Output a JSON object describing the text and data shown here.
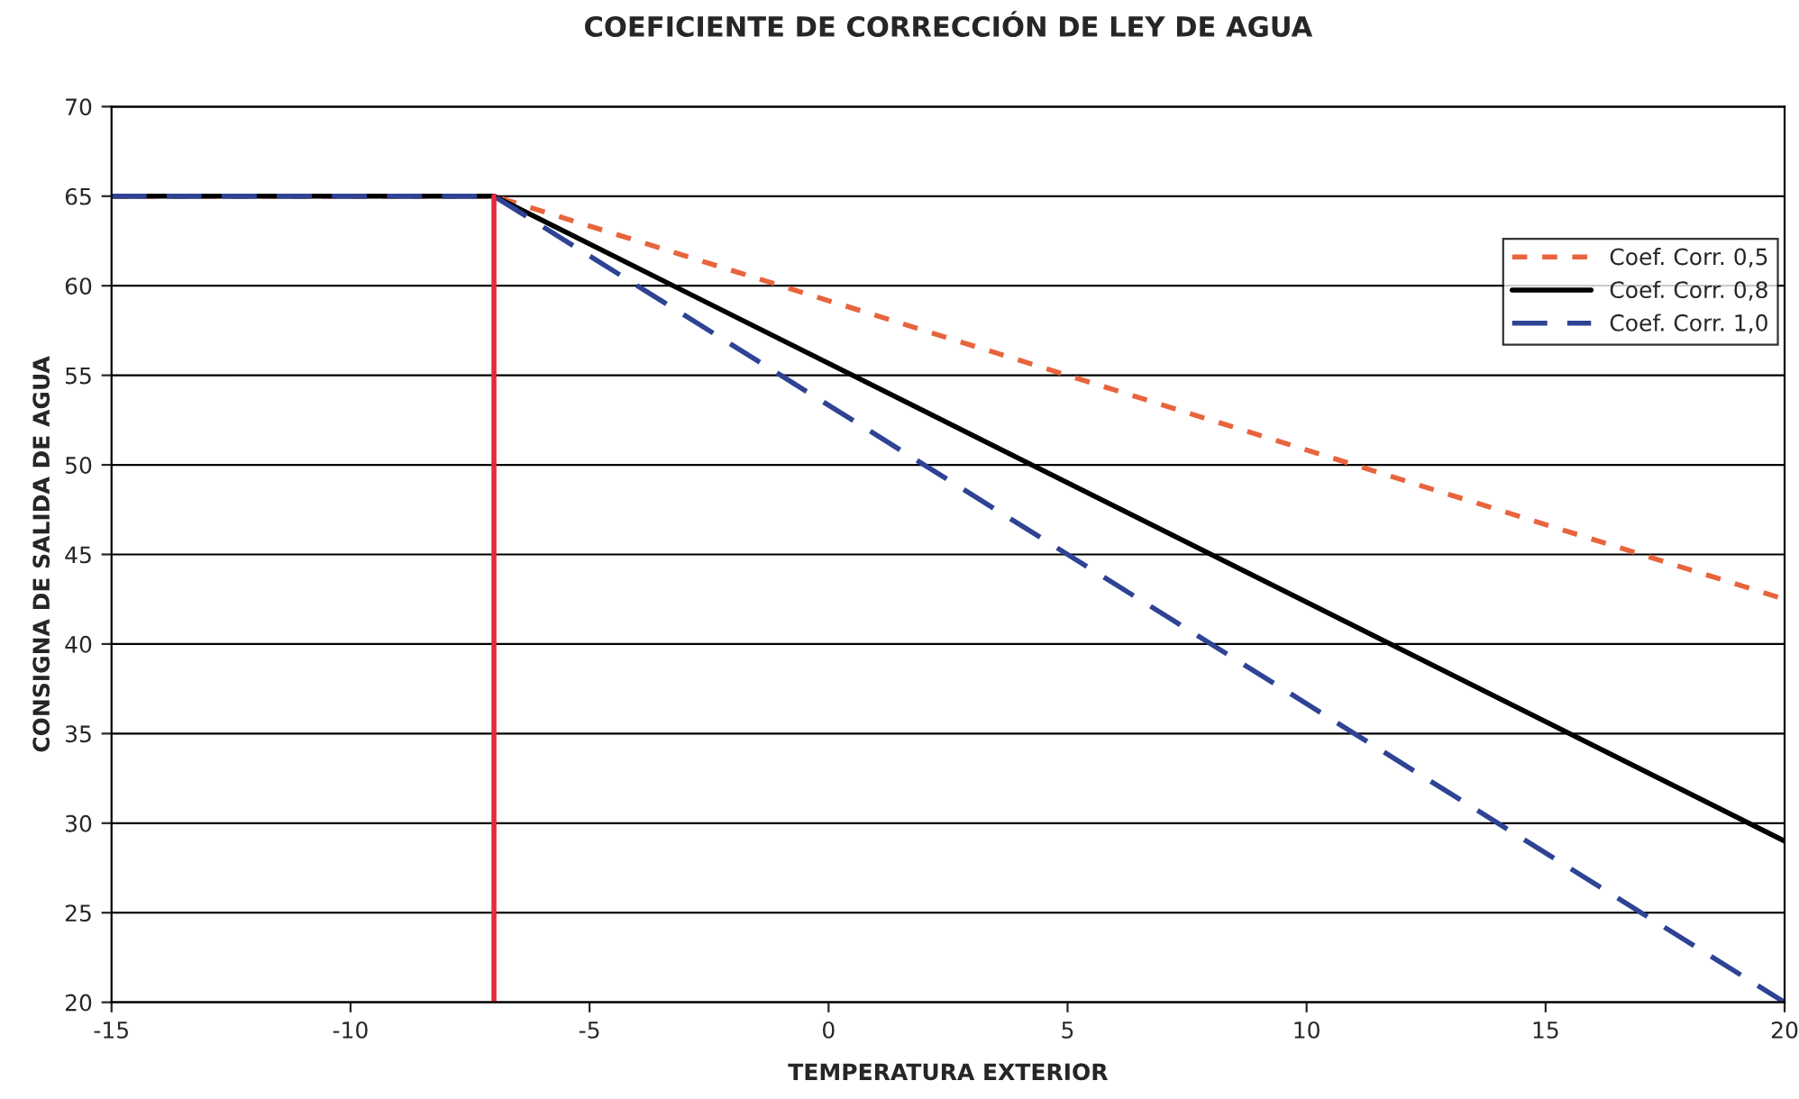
{
  "chart_data": {
    "type": "line",
    "title": "COEFICIENTE DE CORRECCIÓN DE LEY DE AGUA",
    "xlabel": "TEMPERATURA EXTERIOR",
    "ylabel": "CONSIGNA DE SALIDA DE AGUA",
    "x": [
      -15,
      -7,
      20
    ],
    "series": [
      {
        "name": "Coef. Corr. 0,5",
        "color": "#e8643c",
        "line_style": "dotted",
        "values": [
          65,
          65,
          42.5
        ]
      },
      {
        "name": "Coef. Corr. 0,8",
        "color": "#000000",
        "line_style": "solid",
        "values": [
          65,
          65,
          29
        ]
      },
      {
        "name": "Coef. Corr. 1,0",
        "color": "#2e4394",
        "line_style": "dashed",
        "values": [
          65,
          65,
          20
        ]
      },
      {
        "color": "#e8283c",
        "line_style": "solid",
        "x": [
          -7,
          -7
        ],
        "values": [
          20,
          65
        ]
      }
    ],
    "xlim": [
      -15,
      20
    ],
    "xticks": [
      -15,
      -10,
      -5,
      0,
      5,
      10,
      15,
      20
    ],
    "ylim": [
      20,
      70
    ],
    "yticks": [
      20,
      25,
      30,
      35,
      40,
      45,
      50,
      55,
      60,
      65,
      70
    ],
    "grid": "y",
    "legend": "top right",
    "marker": "none"
  }
}
